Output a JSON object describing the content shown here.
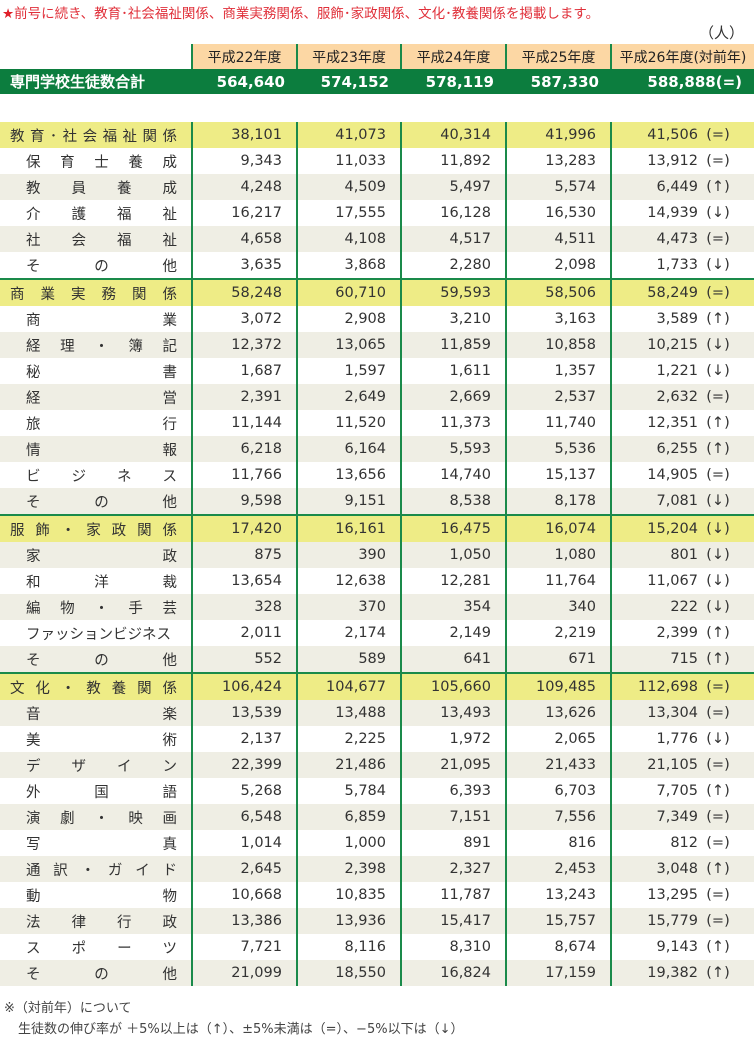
{
  "intro": {
    "star": "★",
    "text": "前号に続き、教育･社会福祉関係、商業実務関係、服飾･家政関係、文化･教養関係を掲載します。"
  },
  "unit": "（人）",
  "colors": {
    "green": "#0c7d3e",
    "header": "#fcd7a4",
    "category": "#eeec86",
    "stripe": "#efeee4",
    "intro": "#e0303a"
  },
  "headers": [
    "平成22年度",
    "平成23年度",
    "平成24年度",
    "平成25年度",
    "平成26年度(対前年)"
  ],
  "total": {
    "label": "専門学校生徒数合計",
    "values": [
      "564,640",
      "574,152",
      "578,119",
      "587,330"
    ],
    "last": "588,888(=)"
  },
  "groups": [
    {
      "label": "教育･社会福祉関係",
      "values": [
        "38,101",
        "41,073",
        "40,314",
        "41,996"
      ],
      "v26": "41,506",
      "trend": "(=)",
      "items": [
        {
          "label": "保育士養成",
          "values": [
            "9,343",
            "11,033",
            "11,892",
            "13,283"
          ],
          "v26": "13,912",
          "trend": "(=)"
        },
        {
          "label": "教員養成",
          "values": [
            "4,248",
            "4,509",
            "5,497",
            "5,574"
          ],
          "v26": "6,449",
          "trend": "(↑)"
        },
        {
          "label": "介護福祉",
          "values": [
            "16,217",
            "17,555",
            "16,128",
            "16,530"
          ],
          "v26": "14,939",
          "trend": "(↓)"
        },
        {
          "label": "社会福祉",
          "values": [
            "4,658",
            "4,108",
            "4,517",
            "4,511"
          ],
          "v26": "4,473",
          "trend": "(=)"
        },
        {
          "label": "その他",
          "values": [
            "3,635",
            "3,868",
            "2,280",
            "2,098"
          ],
          "v26": "1,733",
          "trend": "(↓)"
        }
      ]
    },
    {
      "label": "商業実務関係",
      "values": [
        "58,248",
        "60,710",
        "59,593",
        "58,506"
      ],
      "v26": "58,249",
      "trend": "(=)",
      "items": [
        {
          "label": "商業",
          "values": [
            "3,072",
            "2,908",
            "3,210",
            "3,163"
          ],
          "v26": "3,589",
          "trend": "(↑)"
        },
        {
          "label": "経理・簿記",
          "values": [
            "12,372",
            "13,065",
            "11,859",
            "10,858"
          ],
          "v26": "10,215",
          "trend": "(↓)"
        },
        {
          "label": "秘書",
          "values": [
            "1,687",
            "1,597",
            "1,611",
            "1,357"
          ],
          "v26": "1,221",
          "trend": "(↓)"
        },
        {
          "label": "経営",
          "values": [
            "2,391",
            "2,649",
            "2,669",
            "2,537"
          ],
          "v26": "2,632",
          "trend": "(=)"
        },
        {
          "label": "旅行",
          "values": [
            "11,144",
            "11,520",
            "11,373",
            "11,740"
          ],
          "v26": "12,351",
          "trend": "(↑)"
        },
        {
          "label": "情報",
          "values": [
            "6,218",
            "6,164",
            "5,593",
            "5,536"
          ],
          "v26": "6,255",
          "trend": "(↑)"
        },
        {
          "label": "ビジネス",
          "values": [
            "11,766",
            "13,656",
            "14,740",
            "15,137"
          ],
          "v26": "14,905",
          "trend": "(=)"
        },
        {
          "label": "その他",
          "values": [
            "9,598",
            "9,151",
            "8,538",
            "8,178"
          ],
          "v26": "7,081",
          "trend": "(↓)"
        }
      ]
    },
    {
      "label": "服飾・家政関係",
      "values": [
        "17,420",
        "16,161",
        "16,475",
        "16,074"
      ],
      "v26": "15,204",
      "trend": "(↓)",
      "items": [
        {
          "label": "家政",
          "values": [
            "875",
            "390",
            "1,050",
            "1,080"
          ],
          "v26": "801",
          "trend": "(↓)"
        },
        {
          "label": "和洋裁",
          "values": [
            "13,654",
            "12,638",
            "12,281",
            "11,764"
          ],
          "v26": "11,067",
          "trend": "(↓)"
        },
        {
          "label": "編物・手芸",
          "values": [
            "328",
            "370",
            "354",
            "340"
          ],
          "v26": "222",
          "trend": "(↓)"
        },
        {
          "label": "ファッションビジネス",
          "values": [
            "2,011",
            "2,174",
            "2,149",
            "2,219"
          ],
          "v26": "2,399",
          "trend": "(↑)",
          "nojust": true
        },
        {
          "label": "その他",
          "values": [
            "552",
            "589",
            "641",
            "671"
          ],
          "v26": "715",
          "trend": "(↑)"
        }
      ]
    },
    {
      "label": "文化・教養関係",
      "values": [
        "106,424",
        "104,677",
        "105,660",
        "109,485"
      ],
      "v26": "112,698",
      "trend": "(=)",
      "items": [
        {
          "label": "音楽",
          "values": [
            "13,539",
            "13,488",
            "13,493",
            "13,626"
          ],
          "v26": "13,304",
          "trend": "(=)"
        },
        {
          "label": "美術",
          "values": [
            "2,137",
            "2,225",
            "1,972",
            "2,065"
          ],
          "v26": "1,776",
          "trend": "(↓)"
        },
        {
          "label": "デザイン",
          "values": [
            "22,399",
            "21,486",
            "21,095",
            "21,433"
          ],
          "v26": "21,105",
          "trend": "(=)"
        },
        {
          "label": "外国語",
          "values": [
            "5,268",
            "5,784",
            "6,393",
            "6,703"
          ],
          "v26": "7,705",
          "trend": "(↑)"
        },
        {
          "label": "演劇・映画",
          "values": [
            "6,548",
            "6,859",
            "7,151",
            "7,556"
          ],
          "v26": "7,349",
          "trend": "(=)"
        },
        {
          "label": "写真",
          "values": [
            "1,014",
            "1,000",
            "891",
            "816"
          ],
          "v26": "812",
          "trend": "(=)"
        },
        {
          "label": "通訳・ガイド",
          "values": [
            "2,645",
            "2,398",
            "2,327",
            "2,453"
          ],
          "v26": "3,048",
          "trend": "(↑)"
        },
        {
          "label": "動物",
          "values": [
            "10,668",
            "10,835",
            "11,787",
            "13,243"
          ],
          "v26": "13,295",
          "trend": "(=)"
        },
        {
          "label": "法律行政",
          "values": [
            "13,386",
            "13,936",
            "15,417",
            "15,757"
          ],
          "v26": "15,779",
          "trend": "(=)"
        },
        {
          "label": "スポーツ",
          "values": [
            "7,721",
            "8,116",
            "8,310",
            "8,674"
          ],
          "v26": "9,143",
          "trend": "(↑)"
        },
        {
          "label": "その他",
          "values": [
            "21,099",
            "18,550",
            "16,824",
            "17,159"
          ],
          "v26": "19,382",
          "trend": "(↑)"
        }
      ]
    }
  ],
  "note": {
    "line1": "※（対前年）について",
    "line2": "生徒数の伸び率が ＋5%以上は（↑）、±5%未満は（=）、−5%以下は（↓）"
  }
}
